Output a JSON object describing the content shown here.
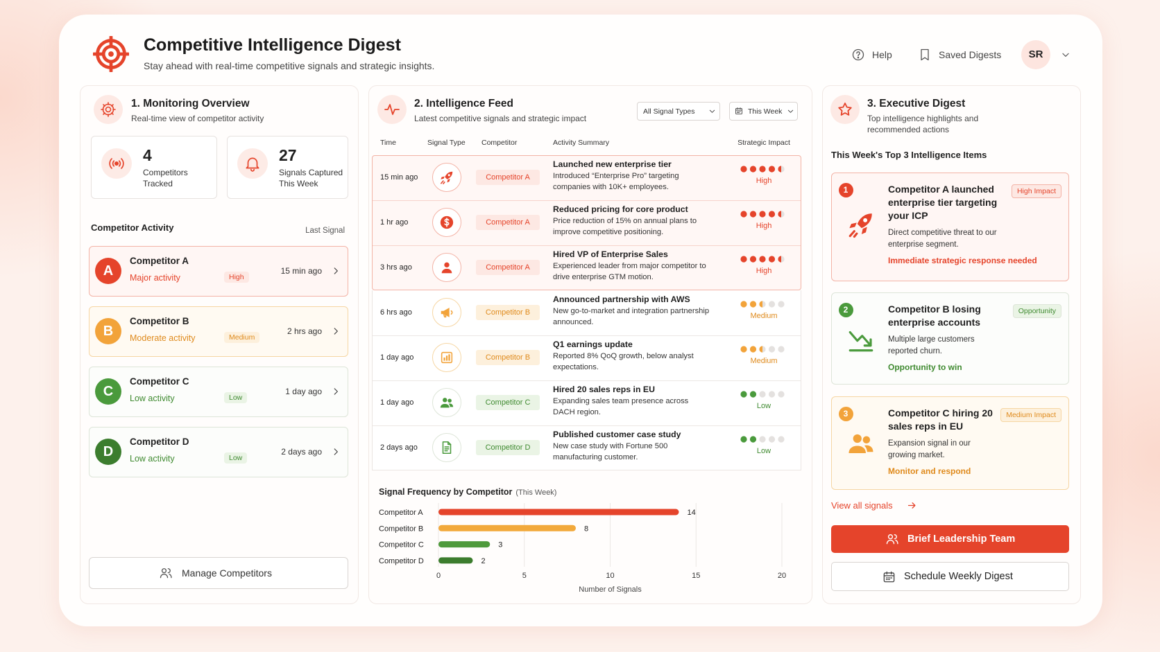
{
  "header": {
    "title": "Competitive Intelligence Digest",
    "subtitle": "Stay ahead with real-time competitive signals and strategic insights.",
    "help": "Help",
    "saved": "Saved Digests",
    "avatar": "SR"
  },
  "monitoring": {
    "title": "1. Monitoring Overview",
    "subtitle": "Real-time view of competitor activity",
    "stats": [
      {
        "value": 4,
        "label": "Competitors Tracked"
      },
      {
        "value": 27,
        "label": "Signals Captured This Week"
      }
    ],
    "activity_title": "Competitor Activity",
    "activity_column": "Last Signal",
    "competitors": [
      {
        "initial": "A",
        "name": "Competitor A",
        "activity": "Major activity",
        "level": "High",
        "last_signal": "15 min ago"
      },
      {
        "initial": "B",
        "name": "Competitor B",
        "activity": "Moderate activity",
        "level": "Medium",
        "last_signal": "2 hrs ago"
      },
      {
        "initial": "C",
        "name": "Competitor C",
        "activity": "Low activity",
        "level": "Low",
        "last_signal": "1 day ago"
      },
      {
        "initial": "D",
        "name": "Competitor D",
        "activity": "Low activity",
        "level": "Low",
        "last_signal": "2 days ago"
      }
    ],
    "button": "Manage Competitors"
  },
  "feed": {
    "title": "2. Intelligence Feed",
    "subtitle": "Latest competitive signals and strategic impact",
    "filter_type": "All Signal Types",
    "filter_period": "This Week",
    "columns": [
      "Time",
      "Signal Type",
      "Competitor",
      "Activity Summary",
      "Strategic Impact"
    ],
    "rows": [
      {
        "time": "15 min ago",
        "competitor": "Competitor A",
        "headline": "Launched new enterprise tier",
        "detail": "Introduced “Enterprise Pro” targeting companies with 10K+ employees.",
        "impact": "High",
        "impact_dots": 4.5
      },
      {
        "time": "1 hr ago",
        "competitor": "Competitor A",
        "headline": "Reduced pricing for core product",
        "detail": "Price reduction of 15% on annual plans to improve competitive positioning.",
        "impact": "High",
        "impact_dots": 4.5
      },
      {
        "time": "3 hrs ago",
        "competitor": "Competitor A",
        "headline": "Hired VP of Enterprise Sales",
        "detail": "Experienced leader from major competitor to drive enterprise GTM motion.",
        "impact": "High",
        "impact_dots": 4.5
      },
      {
        "time": "6 hrs ago",
        "competitor": "Competitor B",
        "headline": "Announced partnership with AWS",
        "detail": "New go-to-market and integration partnership announced.",
        "impact": "Medium",
        "impact_dots": 2.5
      },
      {
        "time": "1 day ago",
        "competitor": "Competitor B",
        "headline": "Q1 earnings update",
        "detail": "Reported 8% QoQ growth, below analyst expectations.",
        "impact": "Medium",
        "impact_dots": 2.5
      },
      {
        "time": "1 day ago",
        "competitor": "Competitor C",
        "headline": "Hired 20 sales reps in EU",
        "detail": "Expanding sales team presence across DACH region.",
        "impact": "Low",
        "impact_dots": 2
      },
      {
        "time": "2 days ago",
        "competitor": "Competitor D",
        "headline": "Published customer case study",
        "detail": "New case study with Fortune 500 manufacturing customer.",
        "impact": "Low",
        "impact_dots": 2
      }
    ]
  },
  "chart_data": {
    "type": "bar",
    "orientation": "horizontal",
    "title": "Signal Frequency by Competitor",
    "subtitle": "(This Week)",
    "x_label": "Number of Signals",
    "categories": [
      "Competitor A",
      "Competitor B",
      "Competitor C",
      "Competitor D"
    ],
    "values": [
      14,
      8,
      3,
      2
    ],
    "colors": [
      "#e5442b",
      "#f2a93b",
      "#4f9a3c",
      "#3c7d2e"
    ],
    "xlim": [
      0,
      20
    ],
    "xticks": [
      0,
      5,
      10,
      15,
      20
    ],
    "grid": true
  },
  "digest": {
    "title": "3. Executive Digest",
    "subtitle": "Top intelligence highlights and recommended actions",
    "section_title": "This Week's Top 3 Intelligence Items",
    "items": [
      {
        "rank": 1,
        "title": "Competitor A launched enterprise tier targeting your ICP",
        "badge": "High Impact",
        "description": "Direct competitive threat to our enterprise segment.",
        "action": "Immediate strategic response needed"
      },
      {
        "rank": 2,
        "title": "Competitor B losing enterprise accounts",
        "badge": "Opportunity",
        "description": "Multiple large customers reported churn.",
        "action": "Opportunity to win"
      },
      {
        "rank": 3,
        "title": "Competitor C hiring 20 sales reps in EU",
        "badge": "Medium Impact",
        "description": "Expansion signal in our growing market.",
        "action": "Monitor and respond"
      }
    ],
    "link": "View all signals",
    "primary_button": "Brief Leadership Team",
    "secondary_button": "Schedule Weekly Digest"
  }
}
